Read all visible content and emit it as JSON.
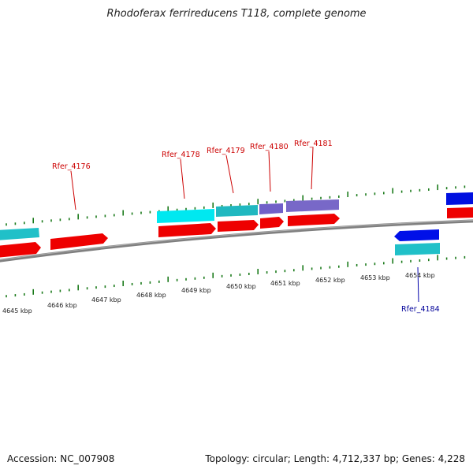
{
  "title": "Rhodoferax ferrireducens T118, complete genome",
  "footer": {
    "accession": "Accession: NC_007908",
    "summary": "Topology: circular; Length: 4,712,337 bp; Genes: 4,228"
  },
  "colors": {
    "forward_cds": "#ff0000",
    "reverse_cds": "#0000ff",
    "forward_feature": "#00e0e0",
    "mid_feature": "#20b8c0",
    "purple_feature": "#7060c0",
    "tick": "#1a7a1a",
    "backbone": "#888888",
    "forward_label": "#cc0000",
    "reverse_label": "#000099"
  },
  "scale_labels": [
    "4645 kbp",
    "4646 kbp",
    "4647 kbp",
    "4648 kbp",
    "4649 kbp",
    "4650 kbp",
    "4651 kbp",
    "4652 kbp",
    "4653 kbp",
    "4654 kbp"
  ],
  "gene_labels": {
    "forward": [
      "Rfer_4176",
      "Rfer_4178",
      "Rfer_4179",
      "Rfer_4180",
      "Rfer_4181"
    ],
    "reverse": [
      "Rfer_4184"
    ]
  }
}
